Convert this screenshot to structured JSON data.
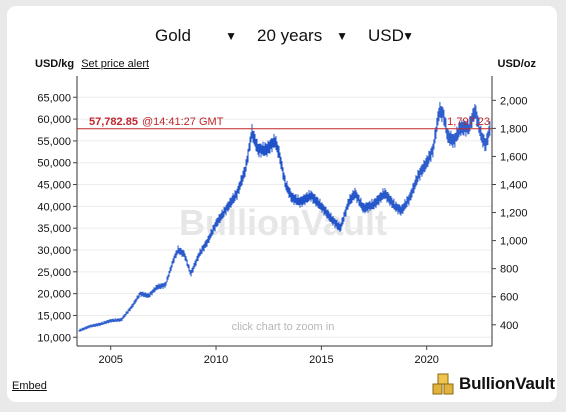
{
  "controls": {
    "metal": "Gold",
    "period": "20 years",
    "currency": "USD"
  },
  "header": {
    "left_unit": "USD/kg",
    "price_alert": "Set price alert",
    "right_unit": "USD/oz"
  },
  "chart_data": {
    "type": "line",
    "title": "",
    "watermark": "BullionVault",
    "hint": "click chart to zoom in",
    "ylabel_left": "USD/kg",
    "ylabel_right": "USD/oz",
    "ylim_left": [
      8000,
      68500
    ],
    "ylim_right": [
      248.8,
      2130.5
    ],
    "xlim": [
      2003.4,
      2023.1
    ],
    "left_ticks": [
      "10,000",
      "15,000",
      "20,000",
      "25,000",
      "30,000",
      "35,000",
      "40,000",
      "45,000",
      "50,000",
      "55,000",
      "60,000",
      "65,000"
    ],
    "right_ticks": [
      "400",
      "600",
      "800",
      "1,000",
      "1,200",
      "1,400",
      "1,600",
      "1,800",
      "2,000"
    ],
    "x_ticks": [
      "2005",
      "2010",
      "2015",
      "2020"
    ],
    "current_price": {
      "usd_per_kg": "57,782.85",
      "time": "@14:41:27 GMT",
      "usd_per_oz": "1,797.23"
    },
    "line_color": "#1f52c8",
    "reference_color": "#c0262c",
    "x": [
      2003.5,
      2004.0,
      2004.5,
      2005.0,
      2005.5,
      2006.0,
      2006.4,
      2006.8,
      2007.2,
      2007.6,
      2008.0,
      2008.2,
      2008.5,
      2008.8,
      2009.2,
      2009.6,
      2010.0,
      2010.5,
      2011.0,
      2011.4,
      2011.7,
      2012.0,
      2012.4,
      2012.8,
      2013.0,
      2013.3,
      2013.6,
      2014.0,
      2014.5,
      2015.0,
      2015.5,
      2015.9,
      2016.3,
      2016.6,
      2017.0,
      2017.5,
      2018.0,
      2018.5,
      2018.8,
      2019.2,
      2019.6,
      2020.0,
      2020.3,
      2020.6,
      2020.8,
      2021.0,
      2021.3,
      2021.6,
      2022.0,
      2022.3,
      2022.6,
      2022.8,
      2023.0
    ],
    "values": [
      11500,
      12500,
      13000,
      13800,
      14000,
      17000,
      20000,
      19500,
      21500,
      22000,
      28000,
      30000,
      29000,
      24500,
      29000,
      32000,
      36000,
      39500,
      43000,
      48500,
      57000,
      53000,
      53000,
      55000,
      52000,
      45000,
      42000,
      41000,
      42500,
      40000,
      37000,
      35000,
      41000,
      43000,
      39500,
      40500,
      43000,
      40000,
      39000,
      42000,
      47000,
      50000,
      53000,
      62000,
      61000,
      56000,
      55000,
      58000,
      58000,
      62000,
      56000,
      54000,
      57782.85
    ]
  },
  "footer": {
    "embed": "Embed",
    "brand": "BullionVault"
  }
}
